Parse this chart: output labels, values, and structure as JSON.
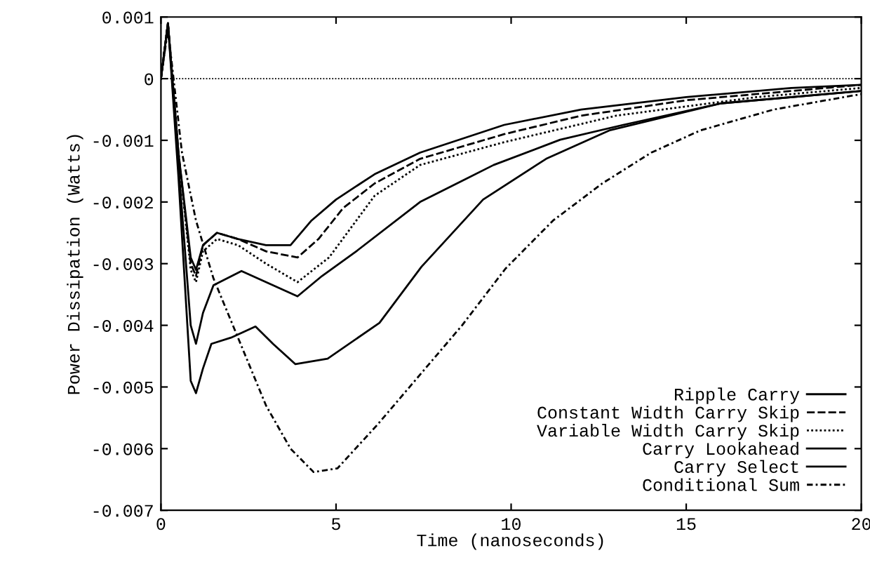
{
  "chart_data": {
    "type": "line",
    "xlabel": "Time (nanoseconds)",
    "ylabel": "Power Dissipation (Watts)",
    "xlim": [
      0,
      20
    ],
    "xticks": [
      0,
      5,
      10,
      15,
      20
    ],
    "ylim": [
      -0.007,
      0.001
    ],
    "yticks": [
      {
        "value": -0.007,
        "label": "-0.007"
      },
      {
        "value": -0.006,
        "label": "-0.006"
      },
      {
        "value": -0.005,
        "label": "-0.005"
      },
      {
        "value": -0.004,
        "label": "-0.004"
      },
      {
        "value": -0.003,
        "label": "-0.003"
      },
      {
        "value": -0.002,
        "label": "-0.002"
      },
      {
        "value": -0.001,
        "label": "-0.001"
      },
      {
        "value": 0,
        "label": "0"
      },
      {
        "value": 0.001,
        "label": "0.001"
      }
    ],
    "grid": false,
    "legend": "bottom right",
    "marker": "none",
    "ref_lines": [
      {
        "axis": "y",
        "value": 0,
        "line_style": "dotted",
        "color": "#000000"
      }
    ],
    "series": [
      {
        "name": "Ripple Carry",
        "color": "#000000",
        "line_style": "solid",
        "x": [
          0,
          0.2,
          0.5,
          0.85,
          1.0,
          1.2,
          1.6,
          2.2,
          3.0,
          3.7,
          4.3,
          5.0,
          6.1,
          7.4,
          9.8,
          12,
          15,
          18,
          20
        ],
        "values": [
          0,
          0.0009,
          -0.0012,
          -0.0029,
          -0.0031,
          -0.0027,
          -0.0025,
          -0.0026,
          -0.0027,
          -0.0027,
          -0.0023,
          -0.00196,
          -0.00155,
          -0.0012,
          -0.00075,
          -0.0005,
          -0.0003,
          -0.00015,
          -0.0001
        ]
      },
      {
        "name": "Constant Width Carry Skip",
        "color": "#000000",
        "line_style": "dashed",
        "x": [
          0,
          0.2,
          0.5,
          0.85,
          1.0,
          1.2,
          1.6,
          2.2,
          3.0,
          3.9,
          4.5,
          5.2,
          6.1,
          7.4,
          9.8,
          12,
          15,
          18,
          20
        ],
        "values": [
          0,
          0.0009,
          -0.0012,
          -0.003,
          -0.0032,
          -0.0027,
          -0.0025,
          -0.0026,
          -0.0028,
          -0.0029,
          -0.0026,
          -0.0021,
          -0.0017,
          -0.0013,
          -0.0009,
          -0.0006,
          -0.00035,
          -0.0002,
          -0.0001
        ]
      },
      {
        "name": "Variable Width Carry Skip",
        "color": "#000000",
        "line_style": "dotted",
        "x": [
          0,
          0.2,
          0.5,
          0.85,
          1.0,
          1.2,
          1.6,
          2.2,
          3.0,
          3.9,
          4.8,
          6.1,
          7.4,
          9.8,
          13,
          17,
          20
        ],
        "values": [
          0,
          0.0009,
          -0.0012,
          -0.0031,
          -0.0033,
          -0.0028,
          -0.0026,
          -0.0027,
          -0.003,
          -0.0033,
          -0.0029,
          -0.0019,
          -0.0014,
          -0.00103,
          -0.0006,
          -0.0003,
          -0.00015
        ]
      },
      {
        "name": "Carry Lookahead",
        "color": "#000000",
        "line_style": "solid",
        "x": [
          0,
          0.2,
          0.5,
          0.85,
          1.0,
          1.2,
          1.5,
          2.3,
          3.0,
          3.9,
          4.6,
          5.6,
          7.4,
          9.5,
          11.4,
          13.2,
          16,
          20
        ],
        "values": [
          0,
          0.0009,
          -0.0014,
          -0.004,
          -0.0043,
          -0.0038,
          -0.00335,
          -0.00312,
          -0.0033,
          -0.00353,
          -0.0032,
          -0.00279,
          -0.002,
          -0.0014,
          -0.00099,
          -0.00075,
          -0.0004,
          -0.0002
        ]
      },
      {
        "name": "Carry Select",
        "color": "#000000",
        "line_style": "solid",
        "x": [
          0,
          0.2,
          0.5,
          0.85,
          1.0,
          1.2,
          1.44,
          2.0,
          2.7,
          3.2,
          3.84,
          4.76,
          6.24,
          7.44,
          9.2,
          11,
          12.8,
          16,
          20
        ],
        "values": [
          0,
          0.0009,
          -0.0016,
          -0.0049,
          -0.0051,
          -0.0047,
          -0.0043,
          -0.0042,
          -0.00402,
          -0.0043,
          -0.00463,
          -0.00454,
          -0.00396,
          -0.00305,
          -0.00196,
          -0.0013,
          -0.00084,
          -0.0004,
          -0.0002
        ]
      },
      {
        "name": "Conditional Sum",
        "color": "#000000",
        "line_style": "dashdot",
        "x": [
          0,
          0.2,
          0.6,
          1.0,
          1.5,
          2.2,
          3.0,
          3.7,
          4.36,
          5.04,
          6.2,
          7.4,
          8.6,
          9.84,
          11.2,
          12.6,
          14,
          15.4,
          17.5,
          20
        ],
        "values": [
          0,
          0.0008,
          -0.0012,
          -0.0023,
          -0.00324,
          -0.0042,
          -0.0053,
          -0.006,
          -0.00638,
          -0.00632,
          -0.0056,
          -0.0048,
          -0.004,
          -0.00308,
          -0.0023,
          -0.0017,
          -0.0012,
          -0.00084,
          -0.0005,
          -0.00025
        ]
      }
    ]
  }
}
